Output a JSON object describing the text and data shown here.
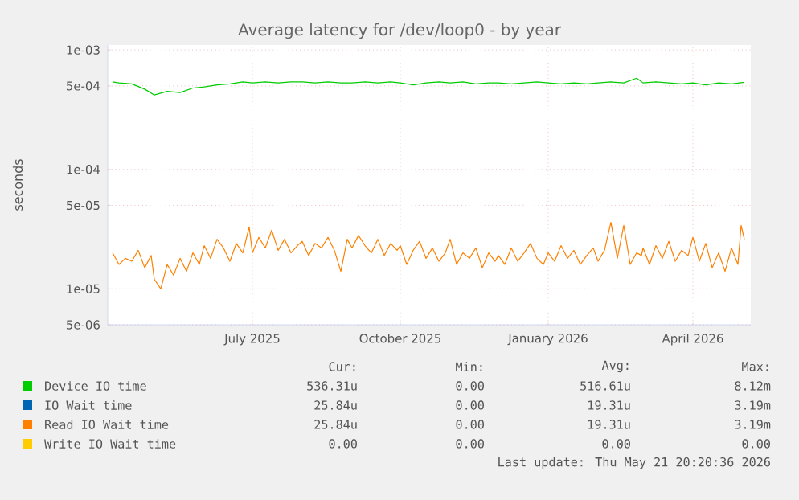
{
  "chart_data": {
    "type": "line",
    "title": "Average latency for /dev/loop0 - by year",
    "ylabel": "seconds",
    "log": "y",
    "grid": true,
    "legend": "bottom",
    "line_style": "solid",
    "marker": "none",
    "xlim": [
      "2025-04-02",
      "2026-05-07"
    ],
    "xticks": [
      {
        "value": "2025-07-01",
        "label": "July 2025"
      },
      {
        "value": "2025-10-01",
        "label": "October 2025"
      },
      {
        "value": "2026-01-01",
        "label": "January 2026"
      },
      {
        "value": "2026-04-01",
        "label": "April 2026"
      }
    ],
    "ylim": [
      5e-06,
      0.0011
    ],
    "yticks": [
      {
        "value": 5e-06,
        "label": "5e-06"
      },
      {
        "value": 1e-05,
        "label": "1e-05"
      },
      {
        "value": 5e-05,
        "label": "5e-05"
      },
      {
        "value": 0.0001,
        "label": "1e-04"
      },
      {
        "value": 0.0005,
        "label": "5e-04"
      },
      {
        "value": 0.001,
        "label": "1e-03"
      }
    ],
    "x": [
      "2025-04-05",
      "2025-04-09",
      "2025-04-13",
      "2025-04-17",
      "2025-04-21",
      "2025-04-25",
      "2025-04-29",
      "2025-05-01",
      "2025-05-05",
      "2025-05-09",
      "2025-05-13",
      "2025-05-17",
      "2025-05-21",
      "2025-05-25",
      "2025-05-29",
      "2025-06-01",
      "2025-06-05",
      "2025-06-09",
      "2025-06-13",
      "2025-06-17",
      "2025-06-21",
      "2025-06-25",
      "2025-06-29",
      "2025-07-01",
      "2025-07-05",
      "2025-07-09",
      "2025-07-13",
      "2025-07-17",
      "2025-07-21",
      "2025-07-25",
      "2025-07-29",
      "2025-08-01",
      "2025-08-05",
      "2025-08-09",
      "2025-08-13",
      "2025-08-17",
      "2025-08-21",
      "2025-08-25",
      "2025-08-29",
      "2025-09-01",
      "2025-09-05",
      "2025-09-09",
      "2025-09-13",
      "2025-09-17",
      "2025-09-21",
      "2025-09-25",
      "2025-09-29",
      "2025-10-01",
      "2025-10-05",
      "2025-10-09",
      "2025-10-13",
      "2025-10-17",
      "2025-10-21",
      "2025-10-25",
      "2025-10-29",
      "2025-11-01",
      "2025-11-05",
      "2025-11-09",
      "2025-11-13",
      "2025-11-17",
      "2025-11-21",
      "2025-11-25",
      "2025-11-29",
      "2025-12-01",
      "2025-12-05",
      "2025-12-09",
      "2025-12-13",
      "2025-12-17",
      "2025-12-21",
      "2025-12-25",
      "2025-12-29",
      "2026-01-01",
      "2026-01-05",
      "2026-01-09",
      "2026-01-13",
      "2026-01-17",
      "2026-01-21",
      "2026-01-25",
      "2026-01-29",
      "2026-02-01",
      "2026-02-05",
      "2026-02-09",
      "2026-02-13",
      "2026-02-17",
      "2026-02-21",
      "2026-02-25",
      "2026-02-28",
      "2026-03-01",
      "2026-03-05",
      "2026-03-09",
      "2026-03-13",
      "2026-03-17",
      "2026-03-21",
      "2026-03-25",
      "2026-03-29",
      "2026-04-01",
      "2026-04-05",
      "2026-04-09",
      "2026-04-13",
      "2026-04-17",
      "2026-04-21",
      "2026-04-25",
      "2026-04-29",
      "2026-05-01",
      "2026-05-03"
    ],
    "series": [
      {
        "name": "Device IO time",
        "color": "#00cc00",
        "x": [
          "2025-04-05",
          "2025-04-09",
          "2025-04-17",
          "2025-04-25",
          "2025-05-01",
          "2025-05-09",
          "2025-05-17",
          "2025-05-25",
          "2025-06-01",
          "2025-06-09",
          "2025-06-17",
          "2025-06-25",
          "2025-07-01",
          "2025-07-09",
          "2025-07-17",
          "2025-07-25",
          "2025-08-01",
          "2025-08-09",
          "2025-08-17",
          "2025-08-25",
          "2025-09-01",
          "2025-09-09",
          "2025-09-17",
          "2025-09-25",
          "2025-10-01",
          "2025-10-09",
          "2025-10-17",
          "2025-10-25",
          "2025-11-01",
          "2025-11-09",
          "2025-11-17",
          "2025-11-25",
          "2025-12-01",
          "2025-12-09",
          "2025-12-17",
          "2025-12-25",
          "2026-01-01",
          "2026-01-09",
          "2026-01-17",
          "2026-01-25",
          "2026-02-01",
          "2026-02-09",
          "2026-02-17",
          "2026-02-25",
          "2026-03-01",
          "2026-03-09",
          "2026-03-17",
          "2026-03-25",
          "2026-04-01",
          "2026-04-09",
          "2026-04-17",
          "2026-04-25",
          "2026-05-03"
        ],
        "values": [
          0.00054,
          0.00053,
          0.00052,
          0.00047,
          0.00042,
          0.00045,
          0.00044,
          0.00048,
          0.00049,
          0.00051,
          0.00052,
          0.00054,
          0.00053,
          0.00054,
          0.00053,
          0.00054,
          0.00054,
          0.00053,
          0.00054,
          0.00053,
          0.00053,
          0.00054,
          0.00053,
          0.00054,
          0.00053,
          0.00051,
          0.00053,
          0.00054,
          0.00053,
          0.00054,
          0.00052,
          0.00053,
          0.00053,
          0.00052,
          0.00053,
          0.00054,
          0.00053,
          0.00052,
          0.00053,
          0.00052,
          0.00053,
          0.00054,
          0.00053,
          0.00058,
          0.00053,
          0.00054,
          0.00053,
          0.00052,
          0.00053,
          0.00051,
          0.00053,
          0.00052,
          0.000536
        ]
      },
      {
        "name": "IO Wait time",
        "color": "#0066b3",
        "values": [
          null,
          null,
          null,
          null,
          null,
          null,
          null,
          null,
          null,
          null,
          null,
          null,
          null,
          null,
          null,
          null,
          null,
          null,
          null,
          null,
          null,
          null,
          null,
          null,
          null,
          null,
          null,
          null,
          null,
          null,
          null,
          null,
          null,
          null,
          null,
          null,
          null,
          null,
          null,
          null,
          null,
          null,
          null,
          null,
          null,
          null,
          null,
          null,
          null,
          null,
          null,
          null,
          null,
          null,
          null,
          null,
          null,
          null,
          null,
          null,
          null,
          null,
          null,
          null,
          null,
          null,
          null,
          null,
          null,
          null,
          null,
          null,
          null,
          null,
          null,
          null,
          null,
          null,
          null,
          null,
          null,
          null,
          null,
          null,
          null,
          null,
          null,
          null,
          null,
          null,
          null,
          null,
          null,
          null,
          null,
          null,
          null,
          null,
          null,
          null,
          null,
          null,
          null,
          null,
          null
        ]
      },
      {
        "name": "Read IO Wait time",
        "color": "#ff8000",
        "values": [
          2e-05,
          1.6e-05,
          1.8e-05,
          1.7e-05,
          2.1e-05,
          1.5e-05,
          1.9e-05,
          1.2e-05,
          1e-05,
          1.6e-05,
          1.3e-05,
          1.8e-05,
          1.4e-05,
          2e-05,
          1.6e-05,
          2.3e-05,
          1.8e-05,
          2.6e-05,
          2.2e-05,
          1.7e-05,
          2.4e-05,
          2e-05,
          3.3e-05,
          2e-05,
          2.7e-05,
          2.2e-05,
          3.1e-05,
          2.1e-05,
          2.6e-05,
          2e-05,
          2.3e-05,
          2.5e-05,
          1.9e-05,
          2.4e-05,
          2.2e-05,
          2.7e-05,
          2.1e-05,
          1.4e-05,
          2.6e-05,
          2.2e-05,
          2.8e-05,
          2.3e-05,
          2e-05,
          2.6e-05,
          1.9e-05,
          2.4e-05,
          2.1e-05,
          2.3e-05,
          1.6e-05,
          2.1e-05,
          2.5e-05,
          1.8e-05,
          2.2e-05,
          1.7e-05,
          2e-05,
          2.6e-05,
          1.6e-05,
          2e-05,
          1.8e-05,
          2.2e-05,
          1.5e-05,
          2e-05,
          1.7e-05,
          1.9e-05,
          1.6e-05,
          2.2e-05,
          1.7e-05,
          2e-05,
          2.4e-05,
          1.8e-05,
          1.6e-05,
          2e-05,
          1.7e-05,
          2.3e-05,
          1.8e-05,
          2.1e-05,
          1.6e-05,
          1.9e-05,
          2.2e-05,
          1.7e-05,
          2.1e-05,
          3.6e-05,
          1.8e-05,
          3.4e-05,
          1.6e-05,
          2e-05,
          1.9e-05,
          2.2e-05,
          1.6e-05,
          2.3e-05,
          1.8e-05,
          2.5e-05,
          1.7e-05,
          2.1e-05,
          1.9e-05,
          2.7e-05,
          1.7e-05,
          2.4e-05,
          1.5e-05,
          2e-05,
          1.4e-05,
          2.2e-05,
          1.6e-05,
          3.4e-05,
          2.6e-05
        ]
      },
      {
        "name": "Write IO Wait time",
        "color": "#ffcc00",
        "values": [
          null,
          null,
          null,
          null,
          null,
          null,
          null,
          null,
          null,
          null,
          null,
          null,
          null,
          null,
          null,
          null,
          null,
          null,
          null,
          null,
          null,
          null,
          null,
          null,
          null,
          null,
          null,
          null,
          null,
          null,
          null,
          null,
          null,
          null,
          null,
          null,
          null,
          null,
          null,
          null,
          null,
          null,
          null,
          null,
          null,
          null,
          null,
          null,
          null,
          null,
          null,
          null,
          null,
          null,
          null,
          null,
          null,
          null,
          null,
          null,
          null,
          null,
          null,
          null,
          null,
          null,
          null,
          null,
          null,
          null,
          null,
          null,
          null,
          null,
          null,
          null,
          null,
          null,
          null,
          null,
          null,
          null,
          null,
          null,
          null,
          null,
          null,
          null,
          null,
          null,
          null,
          null,
          null,
          null,
          null,
          null,
          null,
          null,
          null,
          null,
          null,
          null,
          null,
          null,
          null
        ]
      }
    ],
    "annotations": [
      "Cur:",
      "Min:",
      "Avg:",
      "Max:",
      "536.31u",
      "0.00",
      "516.61u",
      "8.12m",
      "25.84u",
      "0.00",
      "19.31u",
      "3.19m",
      "25.84u",
      "0.00",
      "19.31u",
      "3.19m",
      "0.00",
      "0.00",
      "0.00",
      "0.00",
      "Last update: Thu May 21 20:20:36 2026"
    ]
  }
}
